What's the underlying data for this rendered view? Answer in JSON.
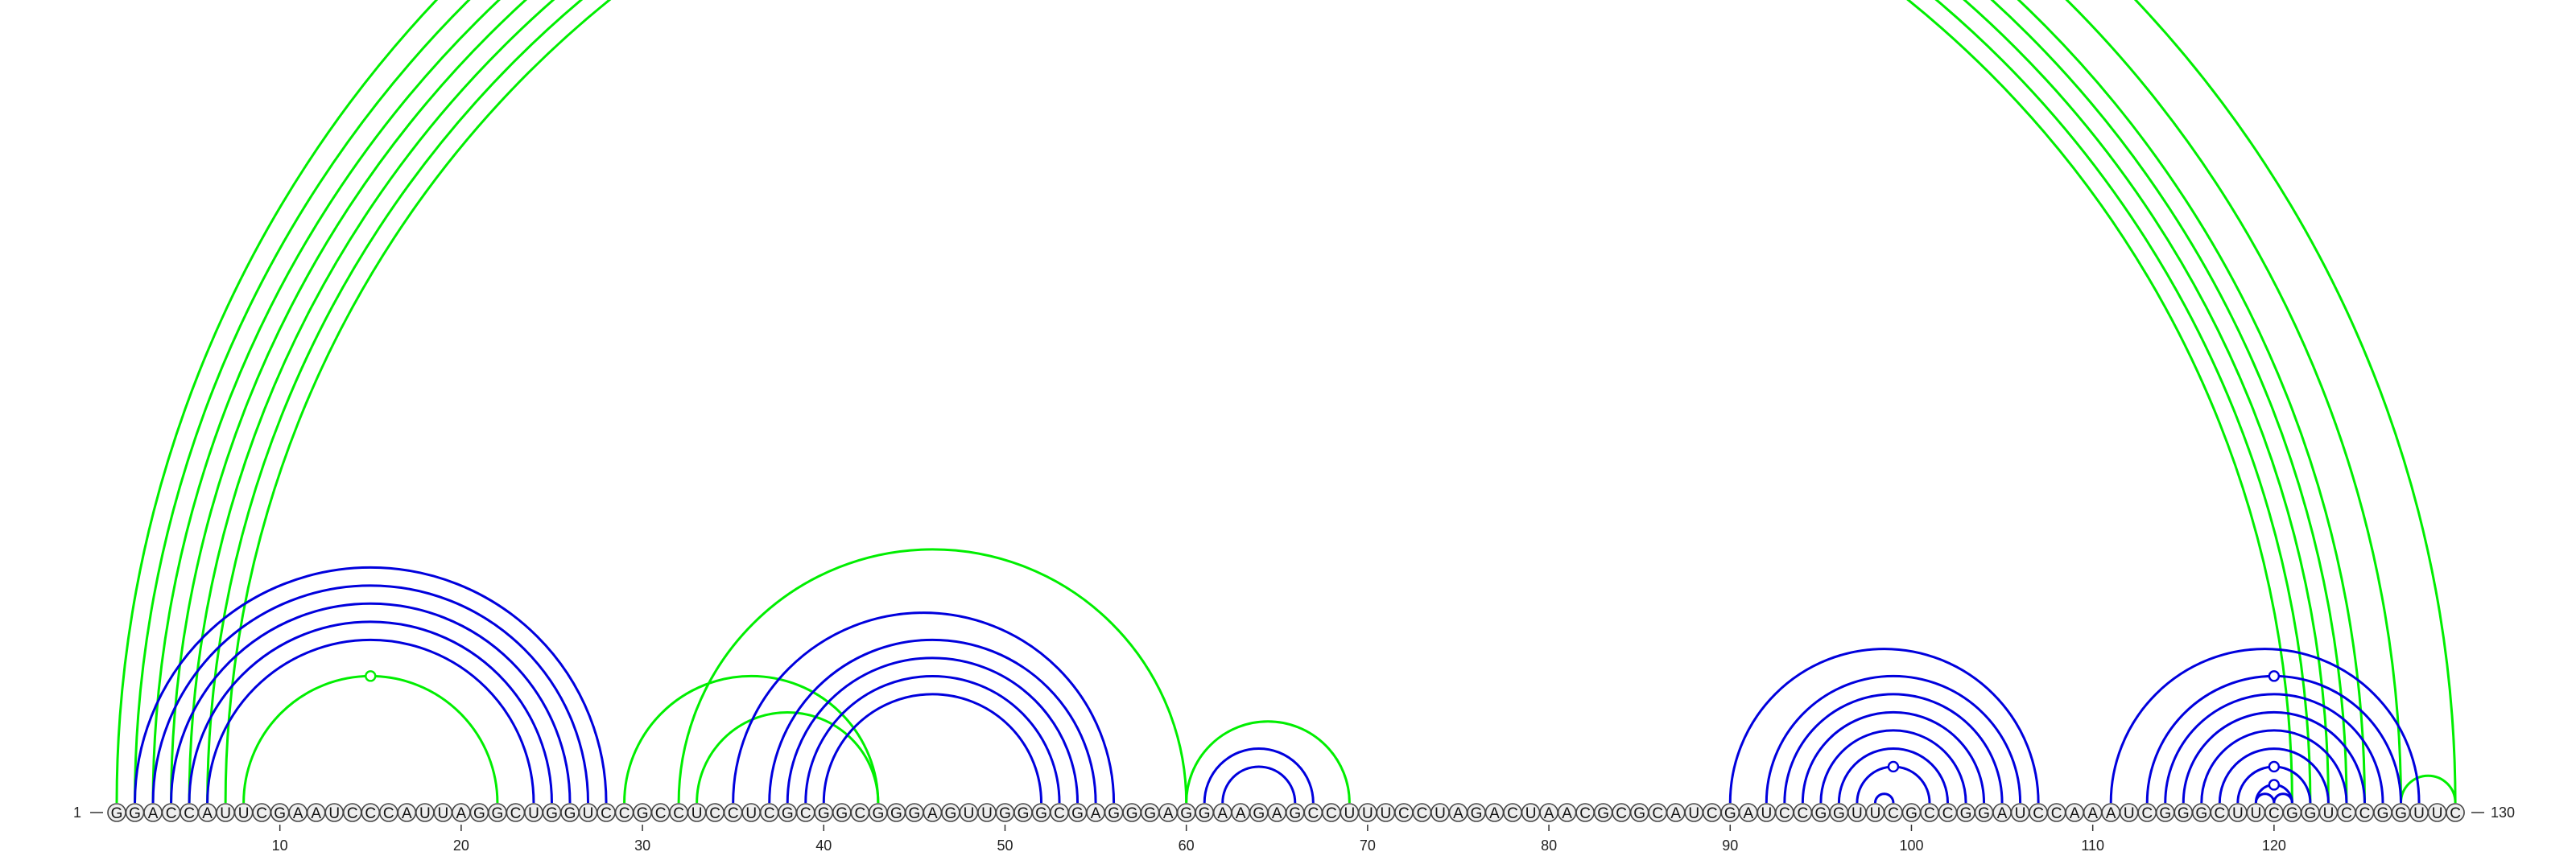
{
  "sequence": "GGACCAUUCGAAUCCCAUUAGGCUGGUCCGCCUCCUCGCGGCGGGAGUUGGGCGAGGGAGGAAGAGCCUUUCCUAGACUAACGCGCAUCGAUCCGGUUCGCCGGAUCCAAAUCGGGCUUCGGUCCGGUUC",
  "start_label": "1",
  "end_label": "130",
  "ticks": [
    "10",
    "20",
    "30",
    "40",
    "50",
    "60",
    "70",
    "80",
    "90",
    "100",
    "110",
    "120"
  ],
  "colors": {
    "conserved_pair": "#0000dd",
    "alternate_pair": "#00ee00"
  },
  "arcs": {
    "blue": [
      [
        2,
        28
      ],
      [
        3,
        27
      ],
      [
        4,
        26
      ],
      [
        5,
        25
      ],
      [
        6,
        24
      ],
      [
        35,
        56
      ],
      [
        37,
        55
      ],
      [
        38,
        54
      ],
      [
        39,
        53
      ],
      [
        40,
        52
      ],
      [
        61,
        67
      ],
      [
        62,
        66
      ],
      [
        90,
        107
      ],
      [
        92,
        106
      ],
      [
        93,
        105
      ],
      [
        94,
        104
      ],
      [
        95,
        103
      ],
      [
        96,
        102
      ],
      [
        97,
        101
      ],
      [
        98,
        99
      ],
      [
        111,
        128
      ],
      [
        113,
        127
      ],
      [
        114,
        126
      ],
      [
        115,
        125
      ],
      [
        116,
        124
      ],
      [
        117,
        123
      ],
      [
        118,
        122
      ],
      [
        119,
        121
      ],
      [
        119,
        120
      ],
      [
        120,
        121
      ]
    ],
    "green": [
      [
        1,
        130
      ],
      [
        2,
        127
      ],
      [
        3,
        125
      ],
      [
        4,
        124
      ],
      [
        5,
        123
      ],
      [
        6,
        122
      ],
      [
        7,
        121
      ],
      [
        8,
        22
      ],
      [
        29,
        43
      ],
      [
        32,
        60
      ],
      [
        33,
        43
      ],
      [
        60,
        69
      ],
      [
        127,
        130
      ]
    ]
  },
  "markers": [
    {
      "arc": "green",
      "pair": [
        1,
        130
      ]
    },
    {
      "arc": "green",
      "pair": [
        8,
        22
      ]
    },
    {
      "arc": "blue",
      "pair": [
        97,
        101
      ]
    },
    {
      "arc": "blue",
      "pair": [
        119,
        121
      ]
    },
    {
      "arc": "blue",
      "pair": [
        118,
        122
      ]
    },
    {
      "arc": "blue",
      "pair": [
        113,
        127
      ]
    }
  ]
}
